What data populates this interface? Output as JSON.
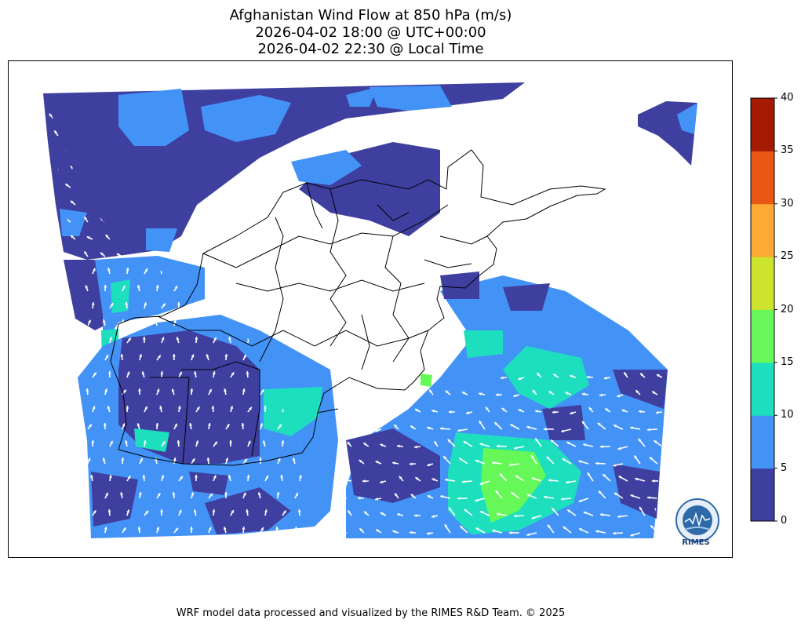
{
  "title": {
    "line1": "Afghanistan Wind Flow at 850 hPa (m/s)",
    "line2": "2026-04-02 18:00 @ UTC+00:00",
    "line3": "2026-04-02 22:30 @ Local Time"
  },
  "colorbar": {
    "ticks": [
      "0",
      "5",
      "10",
      "15",
      "20",
      "25",
      "30",
      "35",
      "40"
    ],
    "colors": [
      "#3f3f9f",
      "#4393f7",
      "#1ddfbe",
      "#66f858",
      "#cde42f",
      "#fcaa33",
      "#e85714",
      "#a51a02"
    ]
  },
  "map": {
    "colors": {
      "calm": "#3f3f9f",
      "light": "#4393f7",
      "moderate": "#1ddfbe",
      "fresh": "#66f858",
      "arrow": "#ffffff",
      "border": "#000000"
    }
  },
  "logo": {
    "text": "RIMES"
  },
  "footer": "WRF model data processed and visualized by the RIMES R&D Team. © 2025"
}
